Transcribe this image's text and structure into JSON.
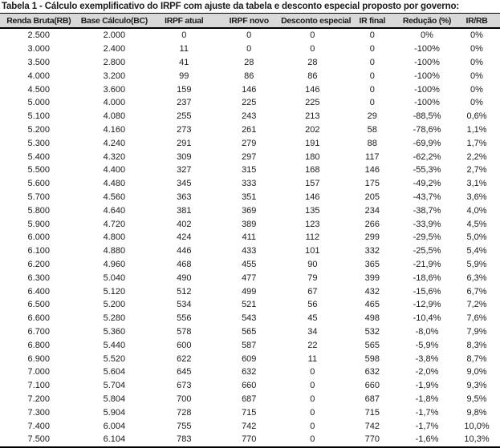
{
  "title": "Tabela 1 - Cálculo exemplificativo do IRPF com ajuste da tabela e desconto especial proposto por governo:",
  "colors": {
    "header_bg": "#d9d9d9",
    "border": "#000000",
    "text": "#1a1a1a",
    "background": "#ffffff"
  },
  "table": {
    "columns": [
      "Renda Bruta(RB)",
      "Base Cálculo(BC)",
      "IRPF atual",
      "IRPF novo",
      "Desconto especial",
      "IR final",
      "Redução (%)",
      "IR/RB"
    ],
    "rows": [
      [
        "2.500",
        "2.000",
        "0",
        "0",
        "0",
        "0",
        "0%",
        "0%"
      ],
      [
        "3.000",
        "2.400",
        "11",
        "0",
        "0",
        "0",
        "-100%",
        "0%"
      ],
      [
        "3.500",
        "2.800",
        "41",
        "28",
        "28",
        "0",
        "-100%",
        "0%"
      ],
      [
        "4.000",
        "3.200",
        "99",
        "86",
        "86",
        "0",
        "-100%",
        "0%"
      ],
      [
        "4.500",
        "3.600",
        "159",
        "146",
        "146",
        "0",
        "-100%",
        "0%"
      ],
      [
        "5.000",
        "4.000",
        "237",
        "225",
        "225",
        "0",
        "-100%",
        "0%"
      ],
      [
        "5.100",
        "4.080",
        "255",
        "243",
        "213",
        "29",
        "-88,5%",
        "0,6%"
      ],
      [
        "5.200",
        "4.160",
        "273",
        "261",
        "202",
        "58",
        "-78,6%",
        "1,1%"
      ],
      [
        "5.300",
        "4.240",
        "291",
        "279",
        "191",
        "88",
        "-69,9%",
        "1,7%"
      ],
      [
        "5.400",
        "4.320",
        "309",
        "297",
        "180",
        "117",
        "-62,2%",
        "2,2%"
      ],
      [
        "5.500",
        "4.400",
        "327",
        "315",
        "168",
        "146",
        "-55,3%",
        "2,7%"
      ],
      [
        "5.600",
        "4.480",
        "345",
        "333",
        "157",
        "175",
        "-49,2%",
        "3,1%"
      ],
      [
        "5.700",
        "4.560",
        "363",
        "351",
        "146",
        "205",
        "-43,7%",
        "3,6%"
      ],
      [
        "5.800",
        "4.640",
        "381",
        "369",
        "135",
        "234",
        "-38,7%",
        "4,0%"
      ],
      [
        "5.900",
        "4.720",
        "402",
        "389",
        "123",
        "266",
        "-33,9%",
        "4,5%"
      ],
      [
        "6.000",
        "4.800",
        "424",
        "411",
        "112",
        "299",
        "-29,5%",
        "5,0%"
      ],
      [
        "6.100",
        "4.880",
        "446",
        "433",
        "101",
        "332",
        "-25,5%",
        "5,4%"
      ],
      [
        "6.200",
        "4.960",
        "468",
        "455",
        "90",
        "365",
        "-21,9%",
        "5,9%"
      ],
      [
        "6.300",
        "5.040",
        "490",
        "477",
        "79",
        "399",
        "-18,6%",
        "6,3%"
      ],
      [
        "6.400",
        "5.120",
        "512",
        "499",
        "67",
        "432",
        "-15,6%",
        "6,7%"
      ],
      [
        "6.500",
        "5.200",
        "534",
        "521",
        "56",
        "465",
        "-12,9%",
        "7,2%"
      ],
      [
        "6.600",
        "5.280",
        "556",
        "543",
        "45",
        "498",
        "-10,4%",
        "7,6%"
      ],
      [
        "6.700",
        "5.360",
        "578",
        "565",
        "34",
        "532",
        "-8,0%",
        "7,9%"
      ],
      [
        "6.800",
        "5.440",
        "600",
        "587",
        "22",
        "565",
        "-5,9%",
        "8,3%"
      ],
      [
        "6.900",
        "5.520",
        "622",
        "609",
        "11",
        "598",
        "-3,8%",
        "8,7%"
      ],
      [
        "7.000",
        "5.604",
        "645",
        "632",
        "0",
        "632",
        "-2,0%",
        "9,0%"
      ],
      [
        "7.100",
        "5.704",
        "673",
        "660",
        "0",
        "660",
        "-1,9%",
        "9,3%"
      ],
      [
        "7.200",
        "5.804",
        "700",
        "687",
        "0",
        "687",
        "-1,8%",
        "9,5%"
      ],
      [
        "7.300",
        "5.904",
        "728",
        "715",
        "0",
        "715",
        "-1,7%",
        "9,8%"
      ],
      [
        "7.400",
        "6.004",
        "755",
        "742",
        "0",
        "742",
        "-1,7%",
        "10,0%"
      ],
      [
        "7.500",
        "6.104",
        "783",
        "770",
        "0",
        "770",
        "-1,6%",
        "10,3%"
      ]
    ]
  }
}
